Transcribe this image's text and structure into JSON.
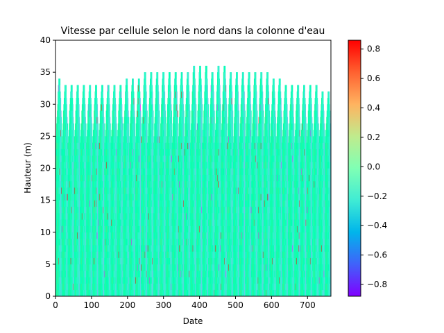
{
  "chart_data": {
    "type": "heatmap",
    "title": "Vitesse par cellule selon le nord dans la colonne d'eau",
    "xlabel": "Date",
    "ylabel": "Hauteur (m)",
    "xlim": [
      0,
      765
    ],
    "ylim": [
      0,
      40
    ],
    "x_ticks": [
      0,
      100,
      200,
      300,
      400,
      500,
      600,
      700
    ],
    "y_ticks": [
      0,
      5,
      10,
      15,
      20,
      25,
      30,
      35,
      40
    ],
    "colorbar": {
      "colormap": "rainbow",
      "vmin": -0.88,
      "vmax": 0.86,
      "ticks": [
        -0.8,
        -0.6,
        -0.4,
        -0.2,
        0.0,
        0.2,
        0.4,
        0.6,
        0.8
      ],
      "tick_labels": [
        "−0.8",
        "−0.6",
        "−0.4",
        "−0.2",
        "0.0",
        "0.2",
        "0.4",
        "0.6",
        "0.8"
      ]
    },
    "cell_height_m": 1,
    "profile_tops_m": [
      34,
      33,
      33,
      33,
      33,
      33,
      33,
      33,
      33,
      33,
      33,
      34,
      34,
      34,
      35,
      35,
      35,
      35,
      35,
      35,
      35,
      35,
      36,
      36,
      36,
      35,
      36,
      36,
      35,
      35,
      35,
      35,
      35,
      35,
      35,
      34,
      34,
      33,
      33,
      33,
      33,
      33,
      33,
      32,
      32
    ],
    "cycle_period": 17,
    "grid": false
  }
}
